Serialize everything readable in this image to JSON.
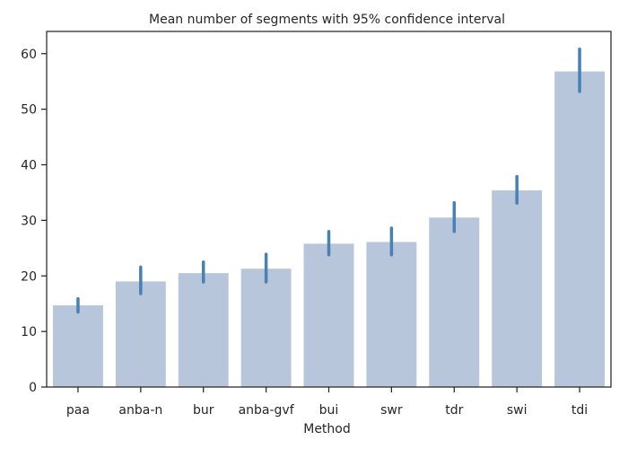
{
  "chart_data": {
    "type": "bar",
    "title": "Mean number of segments with 95% confidence interval",
    "xlabel": "Method",
    "ylabel": "",
    "categories": [
      "paa",
      "anba-n",
      "bur",
      "anba-gvf",
      "bui",
      "swr",
      "tdr",
      "swi",
      "tdi"
    ],
    "values": [
      14.7,
      19.0,
      20.5,
      21.3,
      25.8,
      26.1,
      30.5,
      35.4,
      56.8
    ],
    "ci_low": [
      13.5,
      16.8,
      18.9,
      18.9,
      23.8,
      23.8,
      28.0,
      33.1,
      53.2
    ],
    "ci_high": [
      15.9,
      21.6,
      22.5,
      23.9,
      28.0,
      28.6,
      33.2,
      37.9,
      60.8
    ],
    "ylim": [
      0,
      64
    ],
    "yticks": [
      0,
      10,
      20,
      30,
      40,
      50,
      60
    ],
    "bar_color": "#b7c6da",
    "errorbar_color": "#4682b4",
    "grid": false
  }
}
